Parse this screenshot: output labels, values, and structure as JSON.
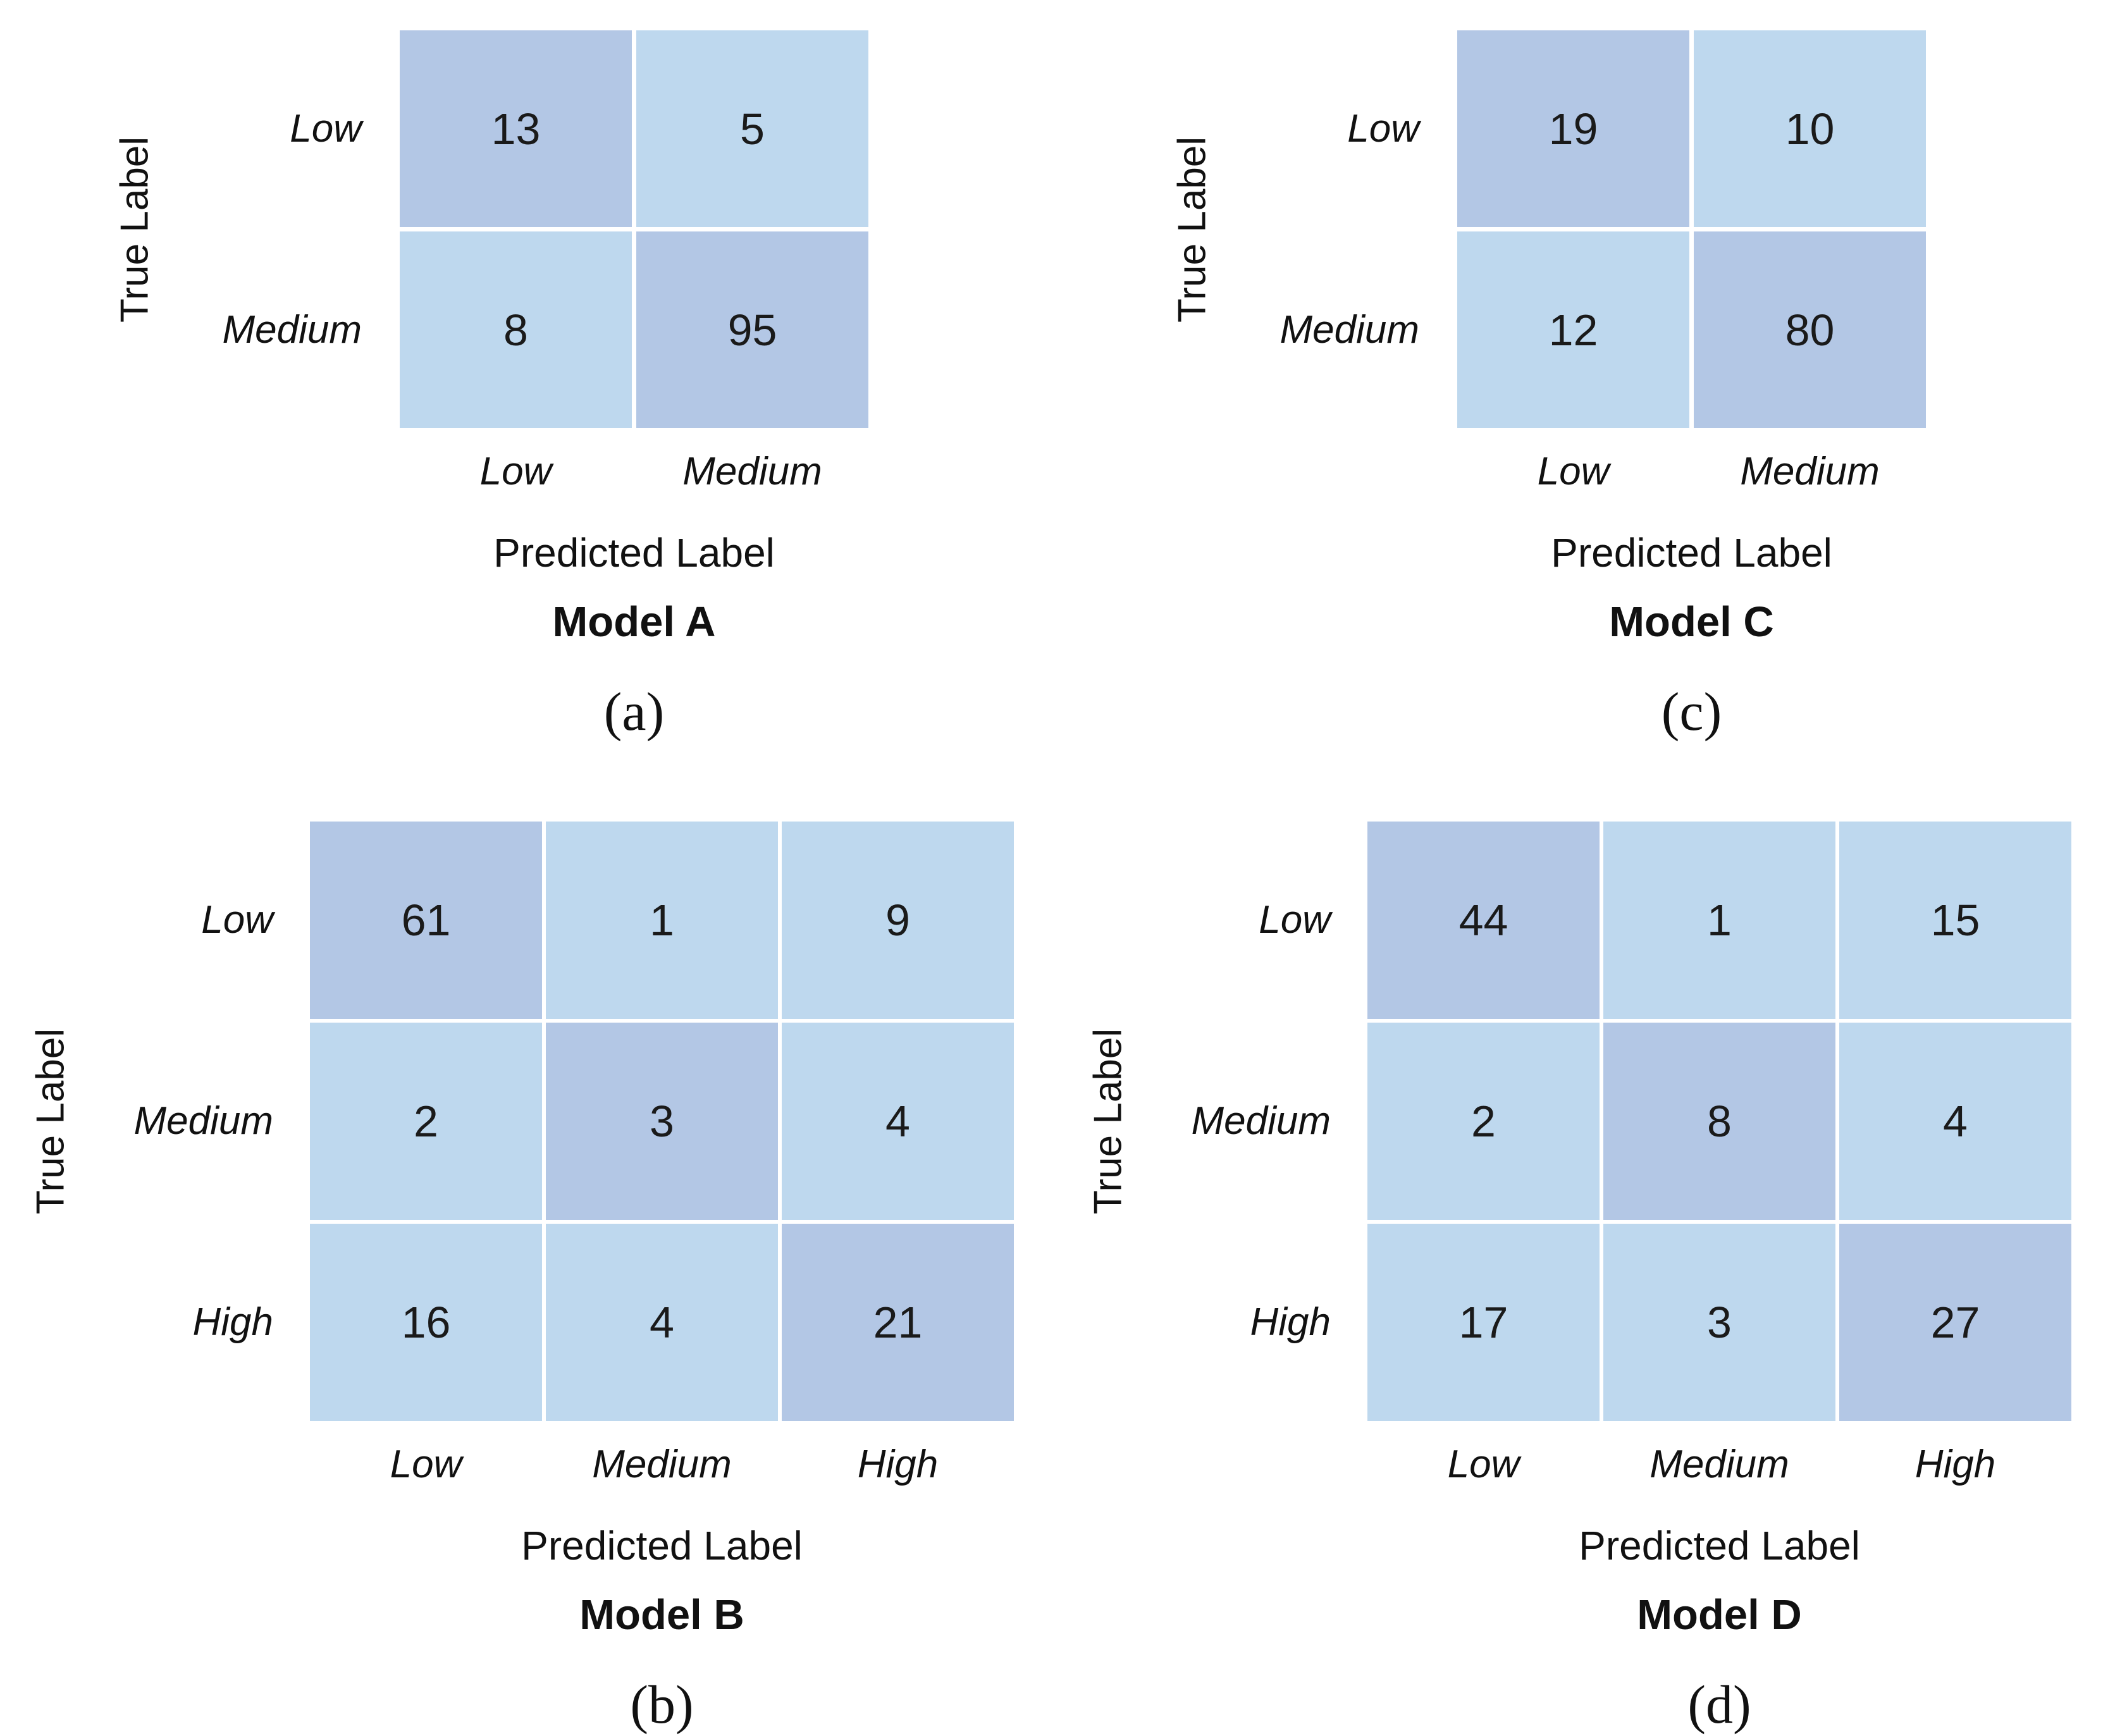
{
  "figure": {
    "description_colors": {
      "diagonal_cell": "#b3c7e5",
      "off_diagonal_cell": "#bed8ee",
      "grid_line": "#ffffff",
      "text": "#111111",
      "background": "#ffffff"
    }
  },
  "chart_data": [
    {
      "type": "heatmap",
      "panel": "a",
      "title": "Model A",
      "caption": "(a)",
      "xlabel": "Predicted Label",
      "ylabel": "True Label",
      "categories": [
        "Low",
        "Medium"
      ],
      "matrix": [
        [
          13,
          5
        ],
        [
          8,
          95
        ]
      ]
    },
    {
      "type": "heatmap",
      "panel": "b",
      "title": "Model B",
      "caption": "(b)",
      "xlabel": "Predicted Label",
      "ylabel": "True Label",
      "categories": [
        "Low",
        "Medium",
        "High"
      ],
      "matrix": [
        [
          61,
          1,
          9
        ],
        [
          2,
          3,
          4
        ],
        [
          16,
          4,
          21
        ]
      ]
    },
    {
      "type": "heatmap",
      "panel": "c",
      "title": "Model C",
      "caption": "(c)",
      "xlabel": "Predicted Label",
      "ylabel": "True Label",
      "categories": [
        "Low",
        "Medium"
      ],
      "matrix": [
        [
          19,
          10
        ],
        [
          12,
          80
        ]
      ]
    },
    {
      "type": "heatmap",
      "panel": "d",
      "title": "Model D",
      "caption": "(d)",
      "xlabel": "Predicted Label",
      "ylabel": "True Label",
      "categories": [
        "Low",
        "Medium",
        "High"
      ],
      "matrix": [
        [
          44,
          1,
          15
        ],
        [
          2,
          8,
          4
        ],
        [
          17,
          3,
          27
        ]
      ]
    }
  ]
}
